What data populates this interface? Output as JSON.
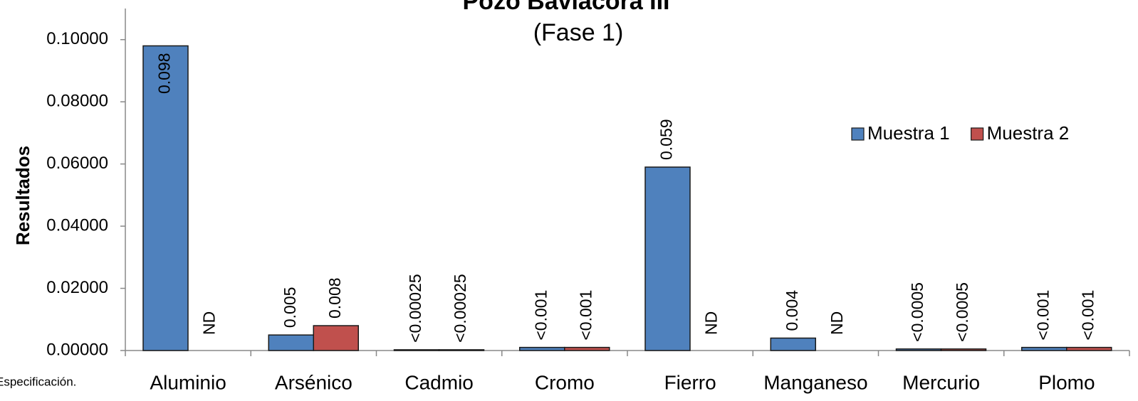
{
  "chart_data": {
    "type": "bar",
    "title": "Pozo Baviácora III",
    "subtitle": "(Fase 1)",
    "y_label": "Resultados",
    "annotation": "Especificación.",
    "categories": [
      "Aluminio",
      "Arsénico",
      "Cadmio",
      "Cromo",
      "Fierro",
      "Manganeso",
      "Mercurio",
      "Plomo"
    ],
    "series": [
      {
        "name": "Muestra 1",
        "color": "#4f81bd",
        "values": [
          0.098,
          0.005,
          0.00025,
          0.001,
          0.059,
          0.004,
          0.0005,
          0.001
        ],
        "value_labels": [
          "0.098",
          "0.005",
          "<0.00025",
          "<0.001",
          "0.059",
          "0.004",
          "<0.0005",
          "<0.001"
        ]
      },
      {
        "name": "Muestra 2",
        "color": "#c0504d",
        "values": [
          null,
          0.008,
          0.00025,
          0.001,
          null,
          null,
          0.0005,
          0.001
        ],
        "value_labels": [
          "ND",
          "0.008",
          "<0.00025",
          "<0.001",
          "ND",
          "ND",
          "<0.0005",
          "<0.001"
        ]
      }
    ],
    "ylim": [
      0,
      0.11
    ],
    "yticks": [
      {
        "value": 0,
        "label": "0.00000"
      },
      {
        "value": 0.02,
        "label": "0.02000"
      },
      {
        "value": 0.04,
        "label": "0.04000"
      },
      {
        "value": 0.06,
        "label": "0.06000"
      },
      {
        "value": 0.08,
        "label": "0.08000"
      },
      {
        "value": 0.1,
        "label": "0.10000"
      }
    ],
    "grid": false,
    "legend": "right"
  }
}
